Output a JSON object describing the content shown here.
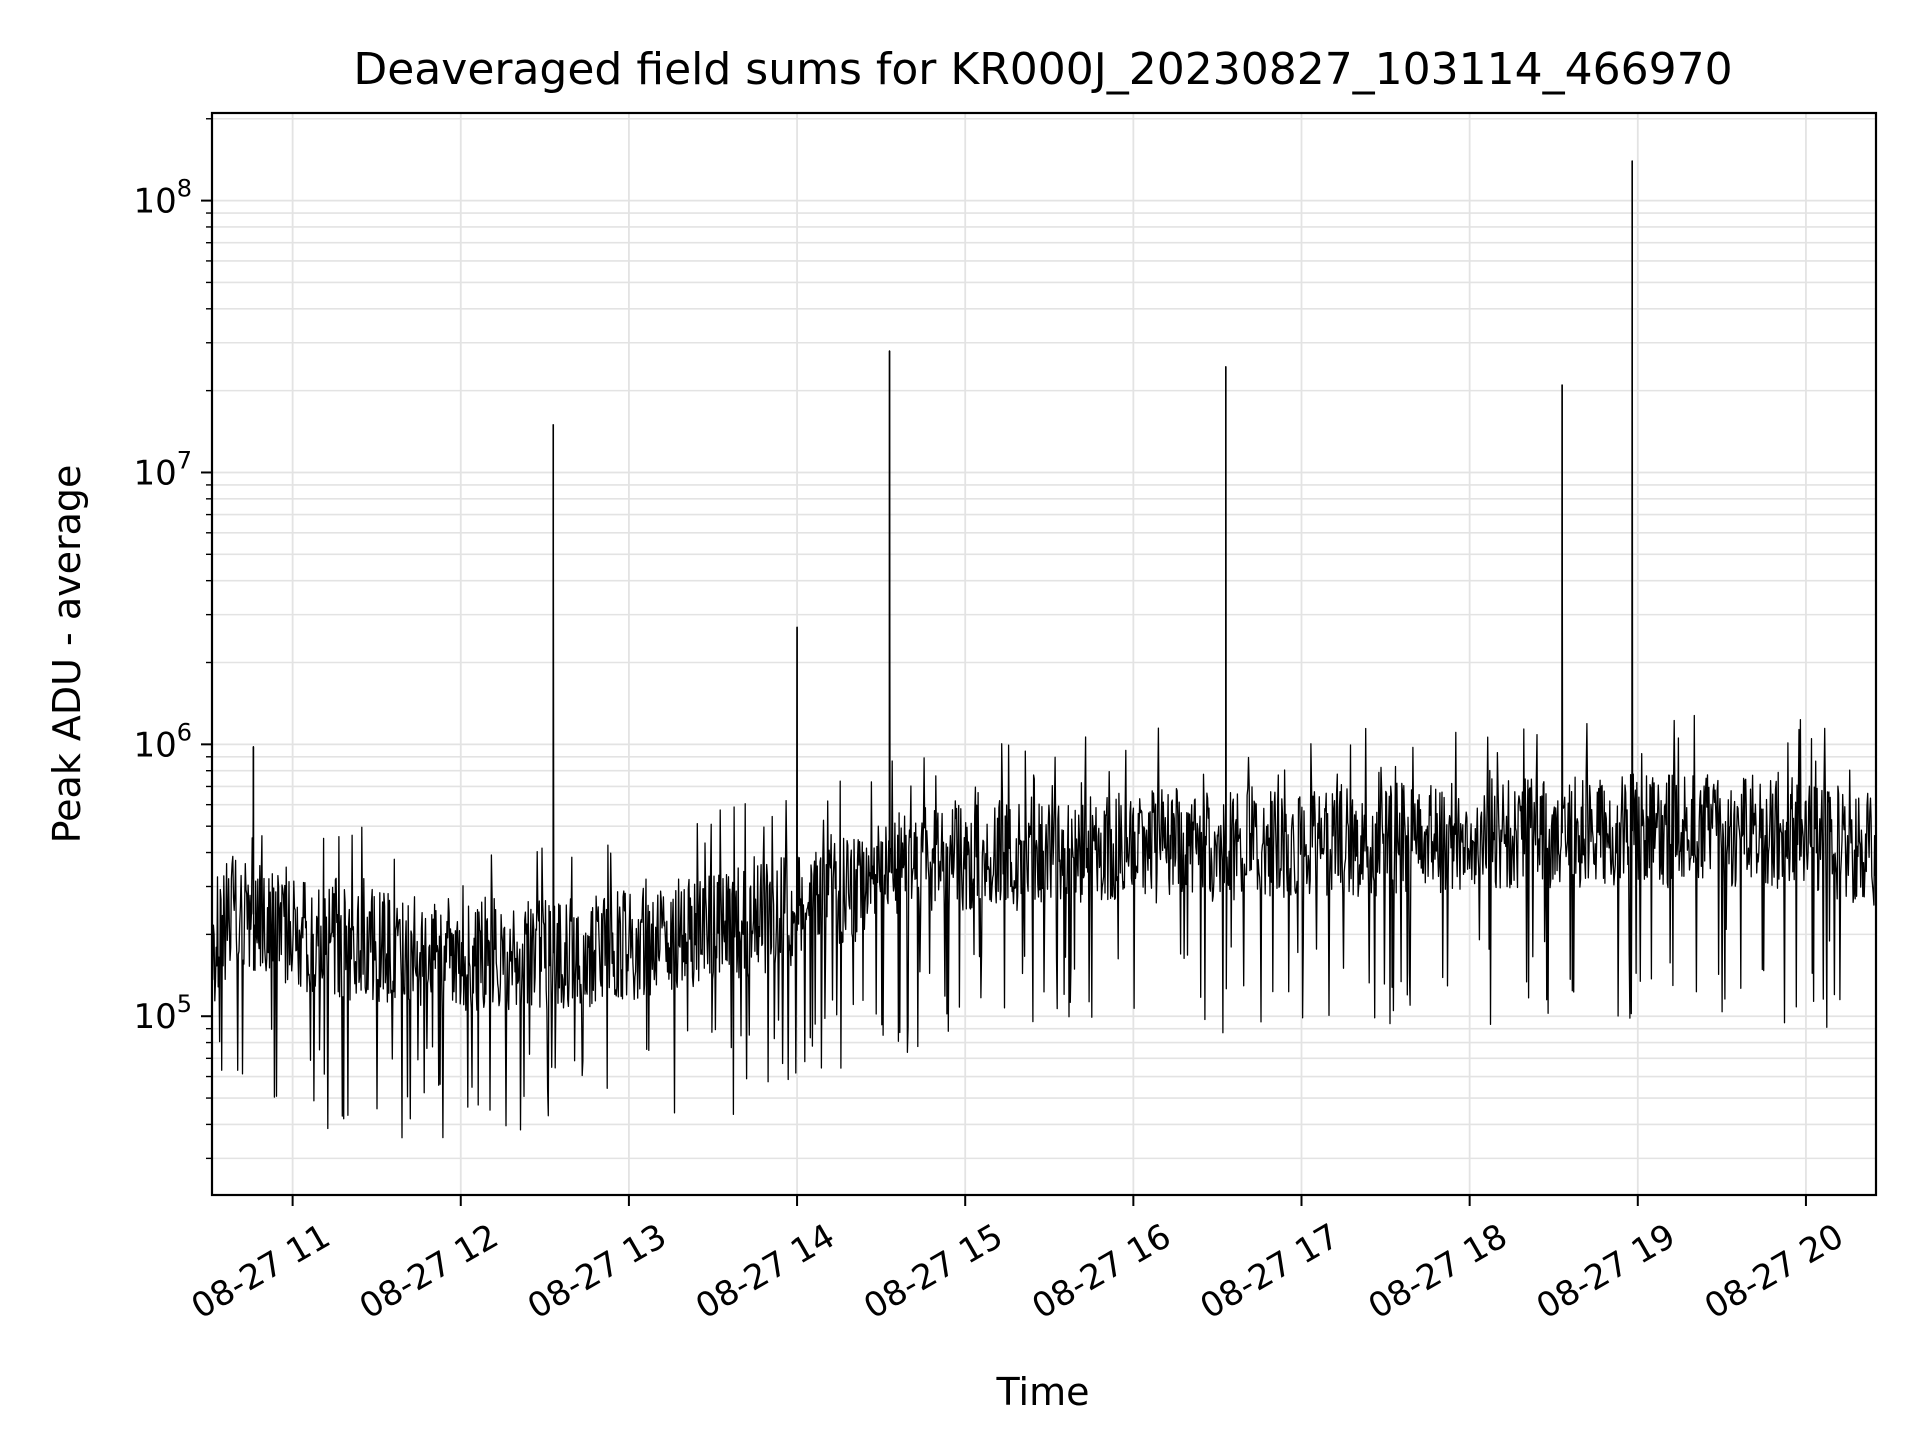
{
  "chart_data": {
    "type": "line",
    "title": "Deaveraged field sums for KR000J_20230827_103114_466970",
    "xlabel": "Time",
    "ylabel": "Peak ADU - average",
    "x_axis": {
      "type": "time",
      "range": [
        "2023-08-27 10:31:14",
        "2023-08-27 20:25:00"
      ],
      "tick_values": [
        "2023-08-27 11:00",
        "2023-08-27 12:00",
        "2023-08-27 13:00",
        "2023-08-27 14:00",
        "2023-08-27 15:00",
        "2023-08-27 16:00",
        "2023-08-27 17:00",
        "2023-08-27 18:00",
        "2023-08-27 19:00",
        "2023-08-27 20:00"
      ],
      "tick_labels": [
        "08-27 11",
        "08-27 12",
        "08-27 13",
        "08-27 14",
        "08-27 15",
        "08-27 16",
        "08-27 17",
        "08-27 18",
        "08-27 19",
        "08-27 20"
      ]
    },
    "y_axis": {
      "scale": "log",
      "range": [
        22000,
        210000000
      ],
      "tick_values": [
        100000,
        1000000,
        10000000,
        100000000
      ],
      "tick_labels": [
        {
          "base": "10",
          "exp": "5"
        },
        {
          "base": "10",
          "exp": "6"
        },
        {
          "base": "10",
          "exp": "7"
        },
        {
          "base": "10",
          "exp": "8"
        }
      ]
    },
    "grid": true,
    "legend": "none",
    "series": [
      {
        "color": "#000000",
        "points": [
          {
            "t": "2023-08-27 10:31",
            "y": 150000
          },
          {
            "t": "2023-08-27 10:38",
            "y": 260000
          },
          {
            "t": "2023-08-27 10:45",
            "y": 240000
          },
          {
            "t": "2023-08-27 10:52",
            "y": 220000
          },
          {
            "t": "2023-08-27 11:00",
            "y": 200000
          },
          {
            "t": "2023-08-27 11:10",
            "y": 190000
          },
          {
            "t": "2023-08-27 11:20",
            "y": 185000
          },
          {
            "t": "2023-08-27 11:30",
            "y": 180000
          },
          {
            "t": "2023-08-27 11:45",
            "y": 175000
          },
          {
            "t": "2023-08-27 12:00",
            "y": 170000
          },
          {
            "t": "2023-08-27 12:15",
            "y": 168000
          },
          {
            "t": "2023-08-27 12:30",
            "y": 170000
          },
          {
            "t": "2023-08-27 12:45",
            "y": 172000
          },
          {
            "t": "2023-08-27 13:00",
            "y": 180000
          },
          {
            "t": "2023-08-27 13:15",
            "y": 195000
          },
          {
            "t": "2023-08-27 13:30",
            "y": 205000
          },
          {
            "t": "2023-08-27 13:45",
            "y": 225000
          },
          {
            "t": "2023-08-27 14:00",
            "y": 250000
          },
          {
            "t": "2023-08-27 14:15",
            "y": 280000
          },
          {
            "t": "2023-08-27 14:30",
            "y": 330000
          },
          {
            "t": "2023-08-27 14:45",
            "y": 370000
          },
          {
            "t": "2023-08-27 15:00",
            "y": 390000
          },
          {
            "t": "2023-08-27 15:30",
            "y": 400000
          },
          {
            "t": "2023-08-27 16:00",
            "y": 420000
          },
          {
            "t": "2023-08-27 16:30",
            "y": 430000
          },
          {
            "t": "2023-08-27 17:00",
            "y": 440000
          },
          {
            "t": "2023-08-27 17:30",
            "y": 450000
          },
          {
            "t": "2023-08-27 18:00",
            "y": 460000
          },
          {
            "t": "2023-08-27 18:30",
            "y": 470000
          },
          {
            "t": "2023-08-27 19:00",
            "y": 480000
          },
          {
            "t": "2023-08-27 19:30",
            "y": 480000
          },
          {
            "t": "2023-08-27 20:00",
            "y": 470000
          },
          {
            "t": "2023-08-27 20:25",
            "y": 400000
          }
        ],
        "spikes": [
          {
            "t": "2023-08-27 10:46",
            "y": 980000
          },
          {
            "t": "2023-08-27 12:33",
            "y": 15000000
          },
          {
            "t": "2023-08-27 14:00",
            "y": 2700000
          },
          {
            "t": "2023-08-27 14:33",
            "y": 28000000
          },
          {
            "t": "2023-08-27 16:33",
            "y": 24500000
          },
          {
            "t": "2023-08-27 18:33",
            "y": 21000000
          },
          {
            "t": "2023-08-27 18:58",
            "y": 140000000
          }
        ],
        "noise_range_y": [
          32000,
          1600000
        ]
      }
    ]
  }
}
